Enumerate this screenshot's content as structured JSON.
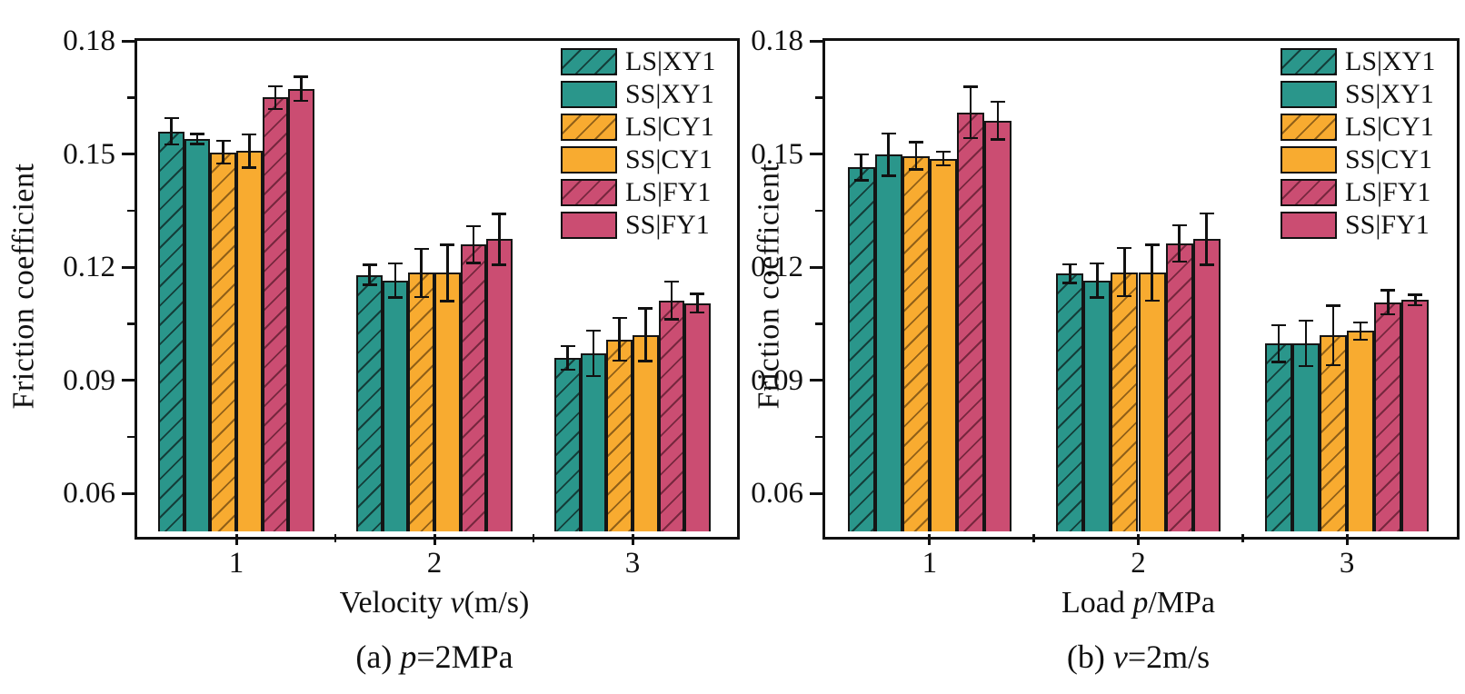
{
  "figure": {
    "background": "#ffffff",
    "text_color": "#111111"
  },
  "colors": {
    "teal": "#2a968b",
    "orange": "#f8ab30",
    "pink": "#cb4d72",
    "axis": "#111111"
  },
  "chart_data": [
    {
      "id": "a",
      "type": "bar",
      "caption": {
        "pre": "(a) ",
        "var": "p",
        "post": "=2MPa"
      },
      "xlabel": {
        "pre": "Velocity ",
        "var": "v",
        "post": "(m/s)"
      },
      "ylabel": "Friction coefficient",
      "categories": [
        "1",
        "2",
        "3"
      ],
      "ylim": [
        0.05,
        0.18
      ],
      "yticks_major": [
        0.06,
        0.09,
        0.12,
        0.15,
        0.18
      ],
      "yticks_minor": [
        0.075,
        0.105,
        0.135,
        0.165
      ],
      "grid": false,
      "legend_position": "top-right-inside",
      "series": [
        {
          "name": "LS|XY1",
          "color": "teal",
          "hatch": true,
          "values": [
            0.156,
            0.118,
            0.096
          ],
          "errors": [
            0.0035,
            0.0026,
            0.0031
          ]
        },
        {
          "name": "SS|XY1",
          "color": "teal",
          "hatch": false,
          "values": [
            0.154,
            0.1165,
            0.0972
          ],
          "errors": [
            0.0013,
            0.0045,
            0.006
          ]
        },
        {
          "name": "LS|CY1",
          "color": "orange",
          "hatch": true,
          "values": [
            0.1505,
            0.1185,
            0.1009
          ],
          "errors": [
            0.003,
            0.0064,
            0.0057
          ]
        },
        {
          "name": "SS|CY1",
          "color": "orange",
          "hatch": false,
          "values": [
            0.1508,
            0.1185,
            0.1021
          ],
          "errors": [
            0.0044,
            0.0075,
            0.007
          ]
        },
        {
          "name": "LS|FY1",
          "color": "pink",
          "hatch": true,
          "values": [
            0.165,
            0.126,
            0.1112
          ],
          "errors": [
            0.003,
            0.0049,
            0.005
          ]
        },
        {
          "name": "SS|FY1",
          "color": "pink",
          "hatch": false,
          "values": [
            0.1673,
            0.1274,
            0.1105
          ],
          "errors": [
            0.0032,
            0.0067,
            0.0025
          ]
        }
      ]
    },
    {
      "id": "b",
      "type": "bar",
      "caption": {
        "pre": "(b) ",
        "var": "v",
        "post": "=2m/s"
      },
      "xlabel": {
        "pre": "Load ",
        "var": "p",
        "post": "/MPa"
      },
      "ylabel": "Friction coefficient",
      "categories": [
        "1",
        "2",
        "3"
      ],
      "ylim": [
        0.05,
        0.18
      ],
      "yticks_major": [
        0.06,
        0.09,
        0.12,
        0.15,
        0.18
      ],
      "yticks_minor": [
        0.075,
        0.105,
        0.135,
        0.165
      ],
      "grid": false,
      "legend_position": "top-right-inside",
      "series": [
        {
          "name": "LS|XY1",
          "color": "teal",
          "hatch": true,
          "values": [
            0.1465,
            0.1183,
            0.0998
          ],
          "errors": [
            0.0034,
            0.0025,
            0.0049
          ]
        },
        {
          "name": "SS|XY1",
          "color": "teal",
          "hatch": false,
          "values": [
            0.1498,
            0.1165,
            0.0998
          ],
          "errors": [
            0.0056,
            0.0045,
            0.006
          ]
        },
        {
          "name": "LS|CY1",
          "color": "orange",
          "hatch": true,
          "values": [
            0.1495,
            0.1187,
            0.1019
          ],
          "errors": [
            0.0036,
            0.0064,
            0.0079
          ]
        },
        {
          "name": "SS|CY1",
          "color": "orange",
          "hatch": false,
          "values": [
            0.1488,
            0.1185,
            0.1031
          ],
          "errors": [
            0.0018,
            0.0074,
            0.0023
          ]
        },
        {
          "name": "LS|FY1",
          "color": "pink",
          "hatch": true,
          "values": [
            0.161,
            0.1263,
            0.1107
          ],
          "errors": [
            0.0068,
            0.0048,
            0.0032
          ]
        },
        {
          "name": "SS|FY1",
          "color": "pink",
          "hatch": false,
          "values": [
            0.1589,
            0.1275,
            0.1113
          ],
          "errors": [
            0.005,
            0.0068,
            0.0014
          ]
        }
      ]
    }
  ]
}
